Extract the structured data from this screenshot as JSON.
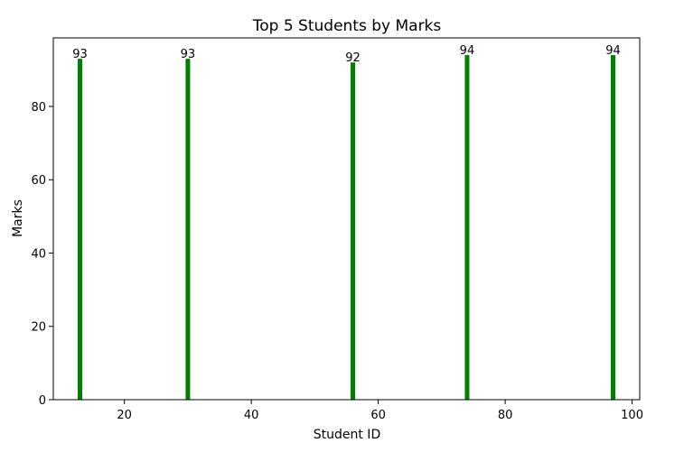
{
  "chart_data": {
    "type": "bar",
    "title": "Top 5 Students by Marks",
    "xlabel": "Student ID",
    "ylabel": "Marks",
    "x": [
      13,
      30,
      56,
      74,
      97
    ],
    "values": [
      93,
      93,
      92,
      94,
      94
    ],
    "data_labels": [
      "93",
      "93",
      "92",
      "94",
      "94"
    ],
    "xlim": [
      8.8,
      101.2
    ],
    "ylim": [
      0,
      98.7
    ],
    "xticks": [
      20,
      40,
      60,
      80,
      100
    ],
    "yticks": [
      0,
      20,
      40,
      60,
      80
    ],
    "bar_color": "#008000",
    "grid": false,
    "legend": "none"
  }
}
